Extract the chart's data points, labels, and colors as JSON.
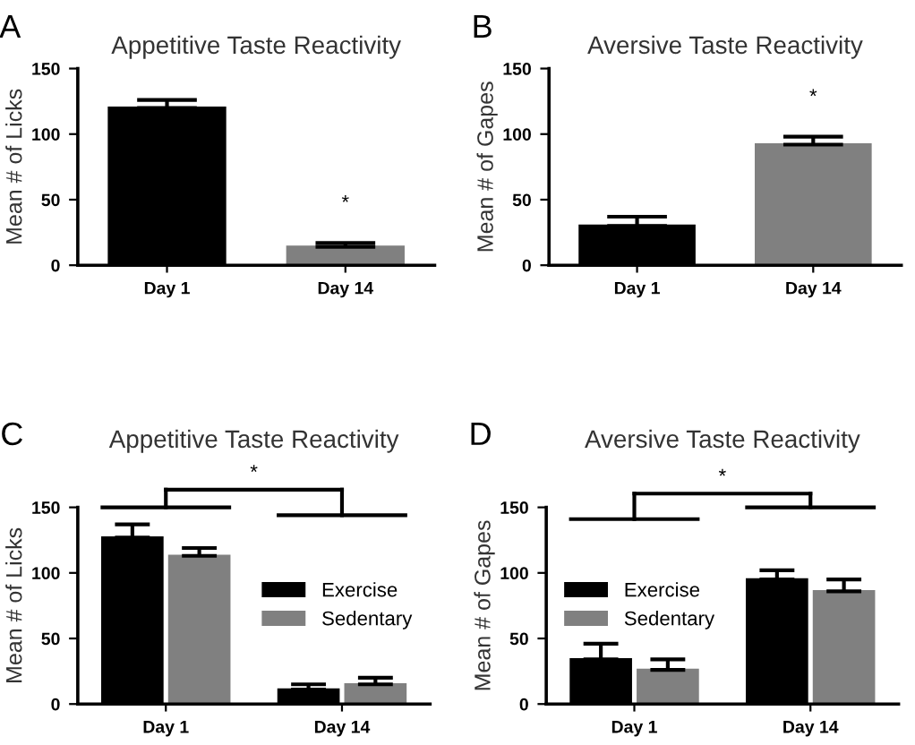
{
  "chart_data": [
    {
      "type": "bar",
      "title": "Appetitive Taste Reactivity",
      "ylabel": "Mean # of Licks",
      "categories": [
        "Day 1",
        "Day 14"
      ],
      "values": [
        120,
        14
      ],
      "colors": [
        "#000000",
        "#808080"
      ],
      "errors": [
        6,
        3
      ],
      "ylim": [
        0,
        150
      ],
      "yticks": [
        0,
        50,
        100,
        150
      ],
      "grid": false,
      "annotations": [
        "A",
        "*"
      ]
    },
    {
      "type": "bar",
      "title": "Aversive Taste Reactivity",
      "ylabel": "Mean # of Gapes",
      "categories": [
        "Day 1",
        "Day 14"
      ],
      "values": [
        30,
        92
      ],
      "colors": [
        "#000000",
        "#808080"
      ],
      "errors": [
        7,
        6
      ],
      "ylim": [
        0,
        150
      ],
      "yticks": [
        0,
        50,
        100,
        150
      ],
      "grid": false,
      "annotations": [
        "B",
        "*"
      ]
    },
    {
      "type": "bar",
      "title": "Appetitive Taste Reactivity",
      "ylabel": "Mean # of Licks",
      "categories": [
        "Day 1",
        "Day 14"
      ],
      "series": [
        {
          "name": "Exercise",
          "color": "#000000",
          "values": [
            127,
            11
          ],
          "errors": [
            10,
            4
          ]
        },
        {
          "name": "Sedentary",
          "color": "#808080",
          "values": [
            113,
            15
          ],
          "errors": [
            6,
            5
          ]
        }
      ],
      "ylim": [
        0,
        150
      ],
      "yticks": [
        0,
        50,
        100,
        150
      ],
      "grid": false,
      "legend": "right",
      "annotations": [
        "C",
        "*"
      ]
    },
    {
      "type": "bar",
      "title": "Aversive Taste Reactivity",
      "ylabel": "Mean # of Gapes",
      "categories": [
        "Day 1",
        "Day 14"
      ],
      "series": [
        {
          "name": "Exercise",
          "color": "#000000",
          "values": [
            34,
            95
          ],
          "errors": [
            12,
            7
          ]
        },
        {
          "name": "Sedentary",
          "color": "#808080",
          "values": [
            26,
            86
          ],
          "errors": [
            8,
            9
          ]
        }
      ],
      "ylim": [
        0,
        150
      ],
      "yticks": [
        0,
        50,
        100,
        150
      ],
      "grid": false,
      "legend": "left",
      "annotations": [
        "D",
        "*"
      ]
    }
  ]
}
